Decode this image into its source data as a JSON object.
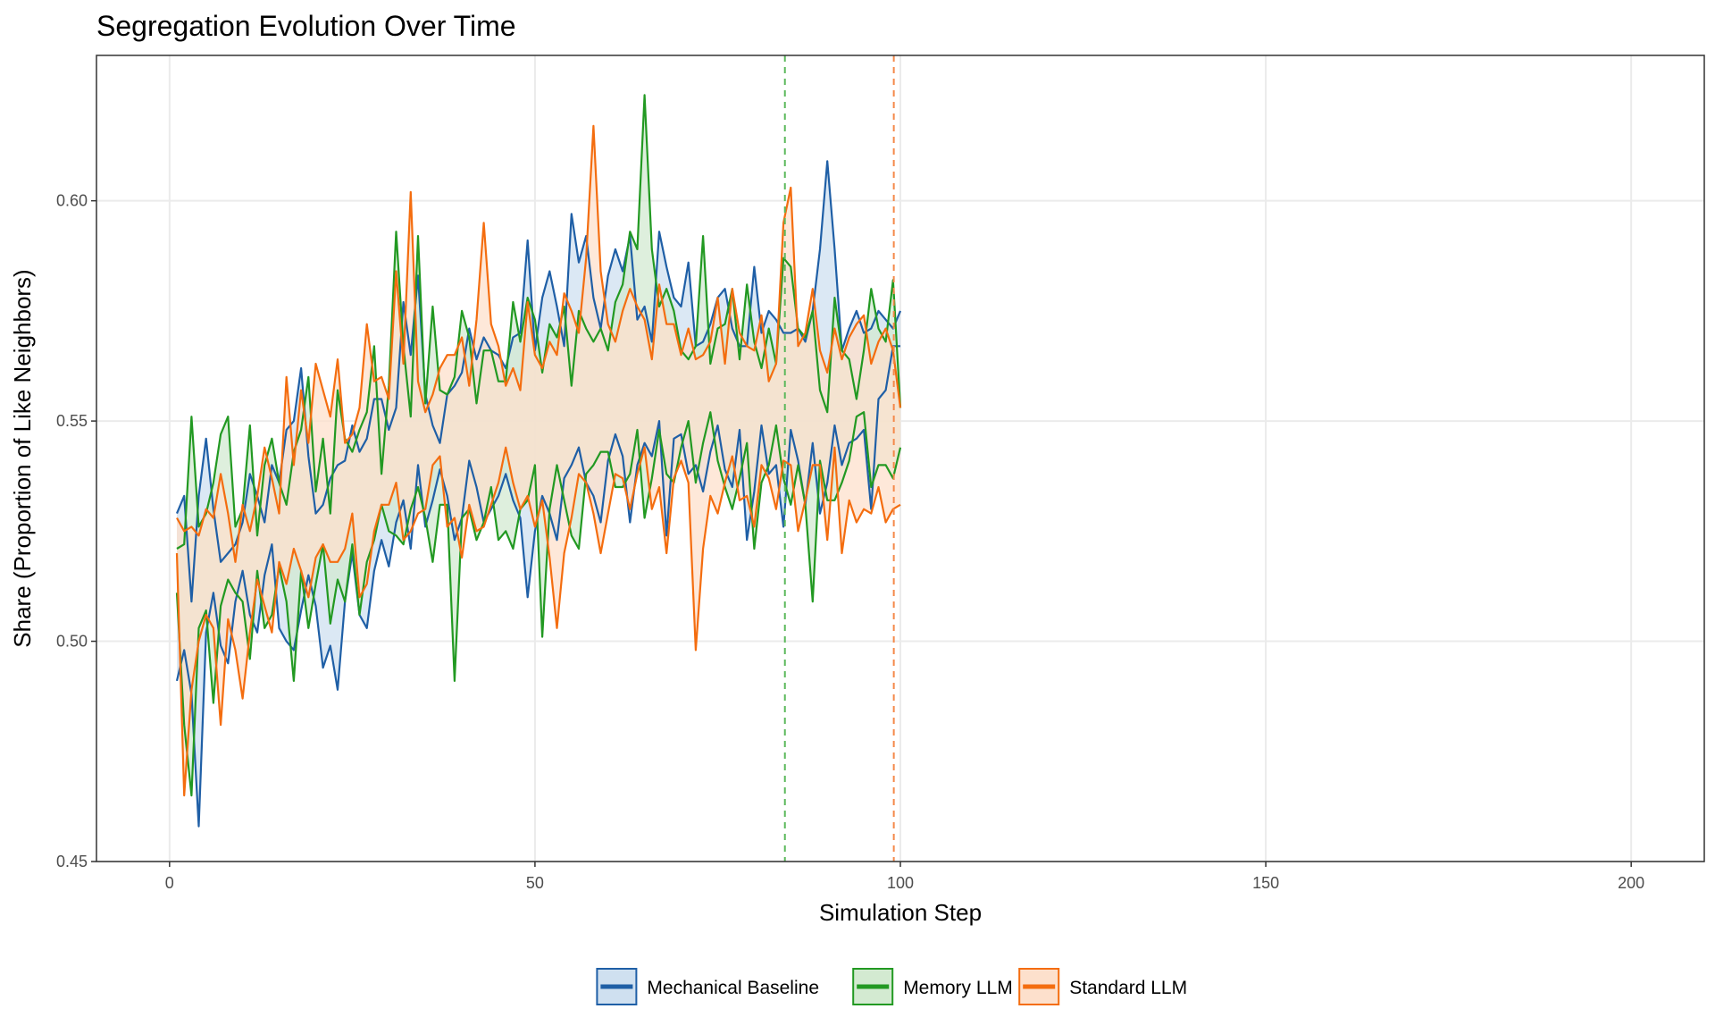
{
  "chart_data": {
    "type": "line",
    "title": "Segregation Evolution Over Time",
    "xlabel": "Simulation Step",
    "ylabel": "Share (Proportion of Like Neighbors)",
    "xlim": [
      -10,
      210
    ],
    "ylim": [
      0.45,
      0.633
    ],
    "x_ticks": [
      0,
      50,
      100,
      150,
      200
    ],
    "x_tick_labels": [
      "0",
      "50",
      "100",
      "150",
      "200"
    ],
    "y_ticks": [
      0.45,
      0.5,
      0.55,
      0.6
    ],
    "y_tick_labels": [
      "0.45",
      "0.50",
      "0.55",
      "0.60"
    ],
    "grid": true,
    "legend_position": "bottom",
    "ribbons": true,
    "series": [
      {
        "name": "Mechanical Baseline",
        "color": "#1f5fa6",
        "fill": "#cfe0f0",
        "lower": [
          0.491,
          0.498,
          0.488,
          0.458,
          0.502,
          0.511,
          0.499,
          0.495,
          0.509,
          0.516,
          0.506,
          0.502,
          0.515,
          0.522,
          0.503,
          0.5,
          0.498,
          0.507,
          0.515,
          0.508,
          0.494,
          0.499,
          0.489,
          0.509,
          0.52,
          0.506,
          0.503,
          0.516,
          0.523,
          0.517,
          0.527,
          0.532,
          0.521,
          0.54,
          0.526,
          0.532,
          0.539,
          0.533,
          0.523,
          0.528,
          0.541,
          0.535,
          0.527,
          0.53,
          0.533,
          0.538,
          0.532,
          0.528,
          0.51,
          0.525,
          0.533,
          0.529,
          0.523,
          0.537,
          0.54,
          0.544,
          0.536,
          0.533,
          0.527,
          0.541,
          0.547,
          0.542,
          0.527,
          0.54,
          0.545,
          0.542,
          0.55,
          0.524,
          0.546,
          0.547,
          0.538,
          0.54,
          0.534,
          0.543,
          0.549,
          0.539,
          0.535,
          0.548,
          0.523,
          0.534,
          0.549,
          0.538,
          0.54,
          0.526,
          0.548,
          0.541,
          0.531,
          0.545,
          0.529,
          0.536,
          0.549,
          0.54,
          0.545,
          0.546,
          0.548,
          0.53,
          0.555,
          0.557,
          0.567,
          0.567
        ],
        "upper": [
          0.529,
          0.533,
          0.509,
          0.533,
          0.546,
          0.53,
          0.518,
          0.52,
          0.522,
          0.527,
          0.538,
          0.533,
          0.527,
          0.54,
          0.536,
          0.548,
          0.55,
          0.562,
          0.542,
          0.529,
          0.531,
          0.537,
          0.54,
          0.541,
          0.549,
          0.543,
          0.546,
          0.555,
          0.555,
          0.548,
          0.553,
          0.577,
          0.565,
          0.583,
          0.556,
          0.549,
          0.545,
          0.556,
          0.558,
          0.561,
          0.571,
          0.564,
          0.569,
          0.566,
          0.565,
          0.562,
          0.569,
          0.57,
          0.591,
          0.566,
          0.578,
          0.584,
          0.576,
          0.567,
          0.597,
          0.586,
          0.592,
          0.578,
          0.571,
          0.583,
          0.589,
          0.584,
          0.592,
          0.573,
          0.576,
          0.568,
          0.593,
          0.585,
          0.578,
          0.576,
          0.586,
          0.567,
          0.568,
          0.572,
          0.578,
          0.58,
          0.571,
          0.567,
          0.567,
          0.585,
          0.57,
          0.575,
          0.573,
          0.57,
          0.57,
          0.571,
          0.568,
          0.575,
          0.589,
          0.609,
          0.589,
          0.566,
          0.571,
          0.575,
          0.57,
          0.571,
          0.575,
          0.573,
          0.571,
          0.575
        ]
      },
      {
        "name": "Memory LLM",
        "color": "#229922",
        "fill": "#d3ead1",
        "lower": [
          0.511,
          0.481,
          0.465,
          0.503,
          0.507,
          0.486,
          0.508,
          0.514,
          0.511,
          0.509,
          0.496,
          0.516,
          0.503,
          0.506,
          0.517,
          0.509,
          0.491,
          0.516,
          0.503,
          0.513,
          0.522,
          0.504,
          0.514,
          0.509,
          0.522,
          0.506,
          0.518,
          0.523,
          0.531,
          0.525,
          0.524,
          0.522,
          0.53,
          0.535,
          0.528,
          0.518,
          0.531,
          0.531,
          0.491,
          0.528,
          0.53,
          0.523,
          0.527,
          0.535,
          0.523,
          0.525,
          0.521,
          0.53,
          0.532,
          0.54,
          0.501,
          0.53,
          0.54,
          0.532,
          0.524,
          0.521,
          0.538,
          0.54,
          0.543,
          0.543,
          0.535,
          0.535,
          0.538,
          0.548,
          0.528,
          0.537,
          0.548,
          0.538,
          0.536,
          0.544,
          0.55,
          0.536,
          0.545,
          0.552,
          0.541,
          0.535,
          0.53,
          0.537,
          0.545,
          0.521,
          0.536,
          0.54,
          0.549,
          0.537,
          0.531,
          0.54,
          0.531,
          0.509,
          0.541,
          0.532,
          0.532,
          0.536,
          0.541,
          0.551,
          0.552,
          0.535,
          0.54,
          0.54,
          0.537,
          0.544
        ],
        "upper": [
          0.521,
          0.522,
          0.551,
          0.526,
          0.529,
          0.536,
          0.547,
          0.551,
          0.526,
          0.53,
          0.549,
          0.524,
          0.54,
          0.546,
          0.536,
          0.531,
          0.543,
          0.548,
          0.56,
          0.534,
          0.546,
          0.529,
          0.557,
          0.546,
          0.543,
          0.548,
          0.552,
          0.567,
          0.538,
          0.558,
          0.593,
          0.567,
          0.551,
          0.592,
          0.554,
          0.576,
          0.557,
          0.556,
          0.56,
          0.575,
          0.569,
          0.554,
          0.566,
          0.566,
          0.559,
          0.559,
          0.577,
          0.568,
          0.578,
          0.573,
          0.561,
          0.572,
          0.569,
          0.576,
          0.558,
          0.575,
          0.571,
          0.568,
          0.571,
          0.566,
          0.577,
          0.581,
          0.593,
          0.589,
          0.624,
          0.589,
          0.576,
          0.58,
          0.575,
          0.566,
          0.564,
          0.567,
          0.592,
          0.563,
          0.571,
          0.572,
          0.58,
          0.564,
          0.581,
          0.568,
          0.562,
          0.571,
          0.563,
          0.587,
          0.585,
          0.571,
          0.569,
          0.575,
          0.557,
          0.552,
          0.578,
          0.566,
          0.564,
          0.555,
          0.566,
          0.58,
          0.571,
          0.568,
          0.582,
          0.553
        ]
      },
      {
        "name": "Standard LLM",
        "color": "#f46d0f",
        "fill": "#fde0cc",
        "lower": [
          0.52,
          0.465,
          0.489,
          0.5,
          0.506,
          0.503,
          0.481,
          0.505,
          0.498,
          0.487,
          0.502,
          0.514,
          0.508,
          0.502,
          0.518,
          0.513,
          0.521,
          0.516,
          0.51,
          0.519,
          0.522,
          0.518,
          0.518,
          0.521,
          0.529,
          0.51,
          0.513,
          0.525,
          0.531,
          0.531,
          0.536,
          0.523,
          0.525,
          0.529,
          0.53,
          0.54,
          0.542,
          0.526,
          0.528,
          0.519,
          0.531,
          0.525,
          0.526,
          0.531,
          0.536,
          0.544,
          0.536,
          0.53,
          0.533,
          0.526,
          0.532,
          0.519,
          0.503,
          0.52,
          0.528,
          0.538,
          0.536,
          0.529,
          0.52,
          0.529,
          0.538,
          0.537,
          0.53,
          0.538,
          0.544,
          0.53,
          0.535,
          0.52,
          0.537,
          0.541,
          0.536,
          0.498,
          0.521,
          0.533,
          0.529,
          0.536,
          0.542,
          0.532,
          0.533,
          0.526,
          0.54,
          0.537,
          0.53,
          0.541,
          0.54,
          0.525,
          0.532,
          0.54,
          0.54,
          0.523,
          0.544,
          0.52,
          0.532,
          0.527,
          0.53,
          0.529,
          0.535,
          0.527,
          0.53,
          0.531
        ],
        "upper": [
          0.528,
          0.525,
          0.526,
          0.524,
          0.53,
          0.528,
          0.538,
          0.529,
          0.518,
          0.531,
          0.525,
          0.533,
          0.544,
          0.537,
          0.529,
          0.56,
          0.54,
          0.557,
          0.545,
          0.563,
          0.557,
          0.551,
          0.564,
          0.545,
          0.547,
          0.553,
          0.572,
          0.559,
          0.56,
          0.555,
          0.584,
          0.563,
          0.602,
          0.559,
          0.552,
          0.556,
          0.562,
          0.565,
          0.565,
          0.569,
          0.558,
          0.573,
          0.595,
          0.572,
          0.567,
          0.558,
          0.562,
          0.557,
          0.577,
          0.565,
          0.562,
          0.568,
          0.565,
          0.579,
          0.575,
          0.57,
          0.587,
          0.617,
          0.584,
          0.572,
          0.568,
          0.575,
          0.58,
          0.576,
          0.573,
          0.564,
          0.581,
          0.572,
          0.572,
          0.565,
          0.571,
          0.564,
          0.565,
          0.568,
          0.578,
          0.563,
          0.58,
          0.57,
          0.567,
          0.566,
          0.574,
          0.559,
          0.563,
          0.595,
          0.603,
          0.567,
          0.57,
          0.58,
          0.566,
          0.561,
          0.571,
          0.564,
          0.569,
          0.572,
          0.574,
          0.563,
          0.568,
          0.571,
          0.566,
          0.553
        ]
      }
    ],
    "vlines": [
      {
        "x": 84.2,
        "color": "#5cb85c",
        "style": "dashed",
        "series": "Memory LLM"
      },
      {
        "x": 99.1,
        "color": "#f4894a",
        "style": "dashed",
        "series": "Standard LLM"
      }
    ]
  }
}
